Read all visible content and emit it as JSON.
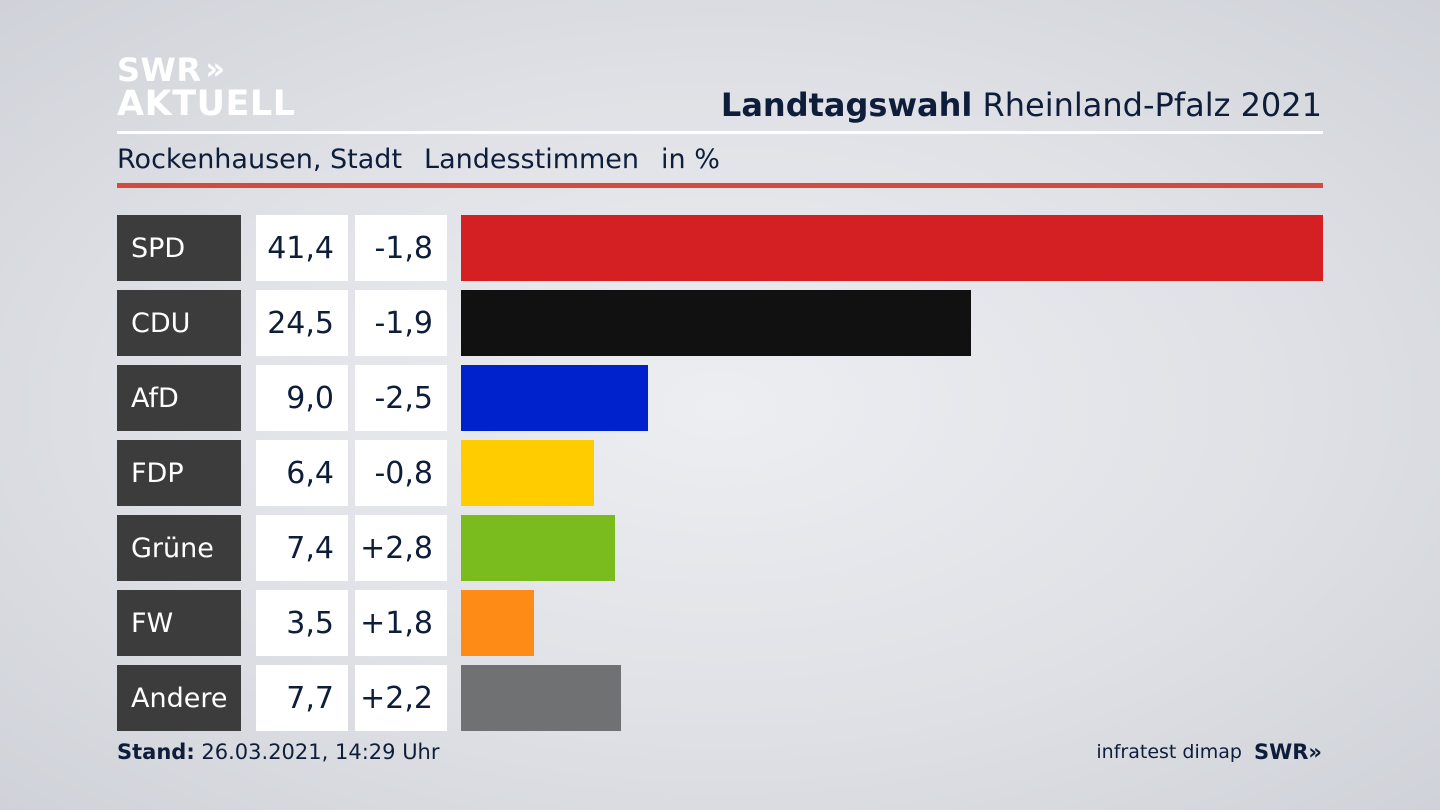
{
  "brand": {
    "line1": "SWR",
    "line1_icon": "double-chevron-icon",
    "line2": "AKTUELL"
  },
  "header": {
    "title_bold": "Landtagswahl",
    "title_rest": "Rheinland-Pfalz 2021",
    "location": "Rockenhausen, Stadt",
    "vote_type": "Landesstimmen",
    "unit": "in %",
    "rule_color": "#d24b3f"
  },
  "chart_data": {
    "type": "bar",
    "orientation": "horizontal",
    "categories": [
      "SPD",
      "CDU",
      "AfD",
      "FDP",
      "Grüne",
      "FW",
      "Andere"
    ],
    "values": [
      41.4,
      24.5,
      9.0,
      6.4,
      7.4,
      3.5,
      7.7
    ],
    "value_labels": [
      "41,4",
      "24,5",
      "9,0",
      "6,4",
      "7,4",
      "3,5",
      "7,7"
    ],
    "change_labels": [
      "-1,8",
      "-1,9",
      "-2,5",
      "-0,8",
      "+2,8",
      "+1,8",
      "+2,2"
    ],
    "changes": [
      -1.8,
      -1.9,
      -2.5,
      -0.8,
      2.8,
      1.8,
      2.2
    ],
    "colors": [
      "#d41f23",
      "#111111",
      "#0022cc",
      "#ffcc00",
      "#7abc1d",
      "#ff8b17",
      "#707172"
    ],
    "xlim": [
      0,
      41.4
    ]
  },
  "footer": {
    "stand_label": "Stand:",
    "stand_value": "26.03.2021, 14:29 Uhr",
    "source": "infratest dimap",
    "brand": "SWR",
    "brand_icon": "double-chevron-icon"
  }
}
